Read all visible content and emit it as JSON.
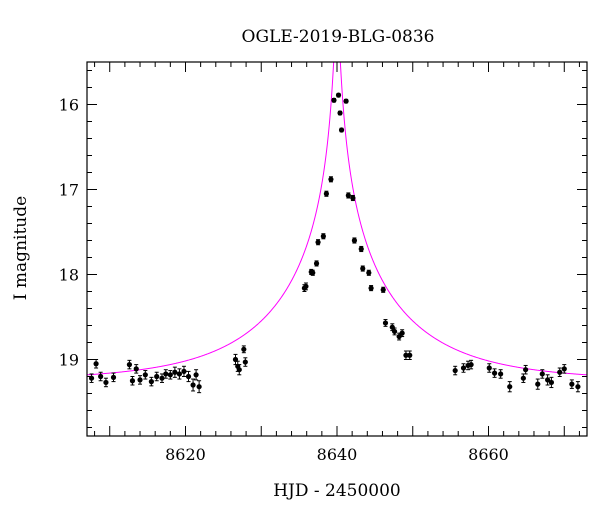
{
  "chart_data": {
    "type": "scatter",
    "title": "OGLE-2019-BLG-0836",
    "xlabel": "HJD - 2450000",
    "ylabel": "I magnitude",
    "xlim": [
      8607,
      8673
    ],
    "ylim": [
      19.9,
      15.5
    ],
    "y_inverted": true,
    "xticks": [
      8620,
      8640,
      8660
    ],
    "xtick_labels": [
      "8620",
      "8640",
      "8660"
    ],
    "yticks": [
      16,
      17,
      18,
      19
    ],
    "ytick_labels": [
      "16",
      "17",
      "18",
      "19"
    ],
    "grid": false,
    "colors": {
      "data": "#000000",
      "model": "#ff00ff"
    },
    "model": {
      "name": "",
      "baseline_mag": 19.25,
      "t0": 8640.0,
      "u0": 0.018,
      "tE": 17.0,
      "blend_fraction": 1.0
    },
    "series": [
      {
        "name": "",
        "x": [
          8607.6,
          8608.2,
          8608.8,
          8609.5,
          8610.5,
          8612.6,
          8613.0,
          8613.5,
          8614.0,
          8614.7,
          8615.5,
          8616.2,
          8616.9,
          8617.4,
          8618.0,
          8618.6,
          8619.2,
          8619.8,
          8620.4,
          8621.0,
          8621.4,
          8621.8,
          8626.6,
          8626.9,
          8627.1,
          8627.7,
          8627.9,
          8635.7,
          8635.9,
          8636.6,
          8636.8,
          8637.3,
          8637.5,
          8638.2,
          8638.6,
          8639.2,
          8639.6,
          8640.2,
          8640.4,
          8640.6,
          8641.2,
          8641.5,
          8642.1,
          8642.3,
          8643.2,
          8643.4,
          8644.2,
          8644.5,
          8646.1,
          8646.4,
          8647.3,
          8647.6,
          8648.2,
          8648.6,
          8649.1,
          8649.6,
          8655.6,
          8656.7,
          8657.3,
          8657.7,
          8660.1,
          8660.8,
          8661.6,
          8662.8,
          8664.6,
          8664.9,
          8666.5,
          8667.1,
          8667.8,
          8668.3,
          8669.4,
          8670.0,
          8671.0,
          8671.8
        ],
        "y": [
          19.22,
          19.05,
          19.2,
          19.27,
          19.21,
          19.06,
          19.25,
          19.11,
          19.24,
          19.18,
          19.26,
          19.2,
          19.22,
          19.17,
          19.18,
          19.15,
          19.17,
          19.14,
          19.2,
          19.3,
          19.18,
          19.32,
          19.0,
          19.08,
          19.12,
          18.88,
          19.03,
          18.16,
          18.14,
          17.97,
          17.98,
          17.87,
          17.62,
          17.55,
          17.05,
          16.88,
          15.95,
          15.89,
          16.1,
          16.3,
          15.96,
          17.07,
          17.1,
          17.6,
          17.7,
          17.93,
          17.98,
          18.16,
          18.18,
          18.57,
          18.62,
          18.67,
          18.73,
          18.69,
          18.95,
          18.95,
          19.13,
          19.1,
          19.07,
          19.06,
          19.1,
          19.16,
          19.17,
          19.32,
          19.22,
          19.12,
          19.29,
          19.17,
          19.24,
          19.27,
          19.15,
          19.11,
          19.29,
          19.32
        ],
        "yerr": [
          0.05,
          0.05,
          0.05,
          0.05,
          0.05,
          0.05,
          0.05,
          0.05,
          0.05,
          0.05,
          0.05,
          0.05,
          0.05,
          0.05,
          0.05,
          0.06,
          0.06,
          0.06,
          0.06,
          0.07,
          0.06,
          0.07,
          0.06,
          0.06,
          0.06,
          0.04,
          0.05,
          0.04,
          0.04,
          0.03,
          0.03,
          0.03,
          0.03,
          0.03,
          0.03,
          0.03,
          0.02,
          0.02,
          0.02,
          0.02,
          0.02,
          0.03,
          0.03,
          0.03,
          0.03,
          0.03,
          0.03,
          0.03,
          0.03,
          0.04,
          0.04,
          0.04,
          0.04,
          0.04,
          0.05,
          0.05,
          0.05,
          0.05,
          0.05,
          0.05,
          0.05,
          0.05,
          0.05,
          0.06,
          0.05,
          0.05,
          0.06,
          0.05,
          0.06,
          0.06,
          0.05,
          0.05,
          0.05,
          0.06
        ]
      }
    ]
  }
}
